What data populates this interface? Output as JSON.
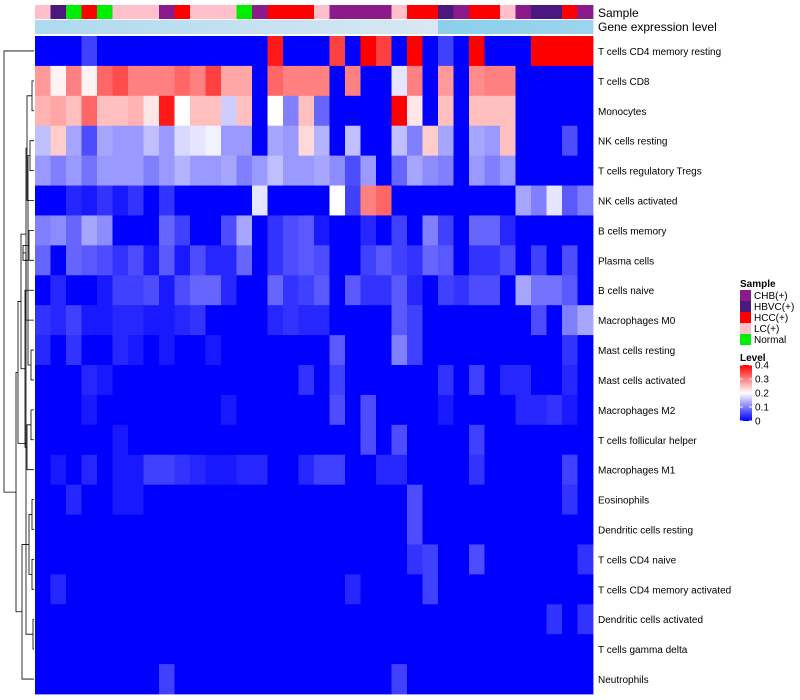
{
  "chart_data": {
    "type": "heatmap",
    "title": "",
    "annotation_tracks": [
      "Sample",
      "Gene expression level"
    ],
    "sample_legend": {
      "title": "Sample",
      "items": [
        {
          "label": "CHB(+)",
          "color": "#8b1a8b"
        },
        {
          "label": "HBVC(+)",
          "color": "#4b1880"
        },
        {
          "label": "HCC(+)",
          "color": "#ff0000"
        },
        {
          "label": "LC(+)",
          "color": "#ffc0cb"
        },
        {
          "label": "Normal",
          "color": "#00ee00"
        }
      ]
    },
    "level_legend": {
      "title": "Level",
      "ticks": [
        "0.4",
        "0.3",
        "0.2",
        "0.1",
        "0"
      ],
      "min": 0,
      "max": 0.4
    },
    "colors": {
      "low": "#0000ff",
      "mid": "#ffffff",
      "high": "#ff0000",
      "expression_low": "#87ceeb",
      "expression_high": "#dde8f3"
    },
    "sample_groups": [
      "LC(+)",
      "HBVC(+)",
      "Normal",
      "HCC(+)",
      "Normal",
      "LC(+)",
      "LC(+)",
      "LC(+)",
      "CHB(+)",
      "HCC(+)",
      "LC(+)",
      "LC(+)",
      "LC(+)",
      "Normal",
      "CHB(+)",
      "HCC(+)",
      "HCC(+)",
      "HCC(+)",
      "LC(+)",
      "CHB(+)",
      "CHB(+)",
      "CHB(+)",
      "CHB(+)",
      "LC(+)",
      "HCC(+)",
      "HCC(+)",
      "HBVC(+)",
      "CHB(+)",
      "HCC(+)",
      "HCC(+)",
      "LC(+)",
      "CHB(+)",
      "HBVC(+)",
      "HBVC(+)",
      "HCC(+)",
      "CHB(+)"
    ],
    "expression_level": [
      0.45,
      0.47,
      0.49,
      0.51,
      0.53,
      0.55,
      0.57,
      0.59,
      0.61,
      0.63,
      0.65,
      0.67,
      0.69,
      0.71,
      0.73,
      0.75,
      0.77,
      0.79,
      0.81,
      0.83,
      0.85,
      0.87,
      0.89,
      0.91,
      0.93,
      0.95,
      0.05,
      0.07,
      0.09,
      0.11,
      0.13,
      0.15,
      0.17,
      0.19,
      0.21,
      0.23
    ],
    "rows": [
      "T cells CD4 memory resting",
      "T cells CD8",
      "Monocytes",
      "NK cells resting",
      "T cells regulatory  Tregs",
      "NK cells activated",
      "B cells memory",
      "Plasma cells",
      "B cells naive",
      "Macrophages M0",
      "Mast cells resting",
      "Mast cells activated",
      "Macrophages M2",
      "T cells follicular helper",
      "Macrophages M1",
      "Eosinophils",
      "Dendritic cells resting",
      "T cells CD4 naive",
      "T cells CD4 memory activated",
      "Dendritic cells activated",
      "T cells gamma delta",
      "Neutrophils"
    ],
    "values": [
      [
        0.0,
        0.0,
        0.0,
        0.05,
        0.0,
        0.0,
        0.0,
        0.0,
        0.0,
        0.0,
        0.0,
        0.0,
        0.0,
        0.0,
        0.0,
        0.38,
        0.0,
        0.0,
        0.0,
        0.35,
        0.0,
        0.4,
        0.35,
        0.0,
        0.4,
        0.0,
        0.05,
        0.0,
        0.4,
        0.0,
        0.0,
        0.0,
        0.4,
        0.4,
        0.4,
        0.4
      ],
      [
        0.28,
        0.21,
        0.3,
        0.21,
        0.32,
        0.34,
        0.3,
        0.3,
        0.3,
        0.32,
        0.3,
        0.35,
        0.27,
        0.27,
        0.0,
        0.32,
        0.3,
        0.3,
        0.3,
        0.0,
        0.3,
        0.0,
        0.0,
        0.18,
        0.3,
        0.0,
        0.28,
        0.0,
        0.29,
        0.3,
        0.3,
        0.0,
        0.0,
        0.0,
        0.0,
        0.0
      ],
      [
        0.26,
        0.27,
        0.25,
        0.32,
        0.25,
        0.25,
        0.26,
        0.22,
        0.38,
        0.2,
        0.25,
        0.25,
        0.16,
        0.25,
        0.0,
        0.2,
        0.1,
        0.25,
        0.08,
        0.0,
        0.0,
        0.0,
        0.0,
        0.4,
        0.22,
        0.0,
        0.25,
        0.0,
        0.25,
        0.25,
        0.25,
        0.0,
        0.0,
        0.0,
        0.0,
        0.0
      ],
      [
        0.15,
        0.24,
        0.13,
        0.06,
        0.13,
        0.12,
        0.12,
        0.15,
        0.12,
        0.17,
        0.18,
        0.19,
        0.12,
        0.12,
        0.0,
        0.13,
        0.12,
        0.23,
        0.14,
        0.0,
        0.15,
        0.0,
        0.0,
        0.15,
        0.1,
        0.24,
        0.13,
        0.0,
        0.13,
        0.12,
        0.25,
        0.0,
        0.0,
        0.0,
        0.06,
        0.0
      ],
      [
        0.12,
        0.1,
        0.12,
        0.09,
        0.12,
        0.12,
        0.12,
        0.1,
        0.12,
        0.14,
        0.12,
        0.12,
        0.13,
        0.1,
        0.12,
        0.15,
        0.12,
        0.12,
        0.13,
        0.11,
        0.06,
        0.12,
        0.0,
        0.08,
        0.13,
        0.11,
        0.1,
        0.0,
        0.12,
        0.1,
        0.12,
        0.0,
        0.0,
        0.0,
        0.0,
        0.0
      ],
      [
        0.0,
        0.0,
        0.03,
        0.02,
        0.04,
        0.02,
        0.04,
        0.0,
        0.04,
        0.0,
        0.0,
        0.0,
        0.0,
        0.0,
        0.18,
        0.0,
        0.0,
        0.0,
        0.0,
        0.2,
        0.05,
        0.3,
        0.32,
        0.0,
        0.0,
        0.0,
        0.0,
        0.0,
        0.0,
        0.0,
        0.0,
        0.13,
        0.1,
        0.18,
        0.07,
        0.1
      ],
      [
        0.1,
        0.11,
        0.08,
        0.13,
        0.11,
        0.0,
        0.0,
        0.0,
        0.08,
        0.05,
        0.0,
        0.0,
        0.06,
        0.13,
        0.0,
        0.04,
        0.06,
        0.07,
        0.02,
        0.0,
        0.0,
        0.03,
        0.0,
        0.05,
        0.0,
        0.1,
        0.05,
        0.0,
        0.08,
        0.08,
        0.03,
        0.0,
        0.0,
        0.0,
        0.0,
        0.0
      ],
      [
        0.08,
        0.0,
        0.08,
        0.07,
        0.06,
        0.04,
        0.06,
        0.02,
        0.07,
        0.02,
        0.06,
        0.03,
        0.03,
        0.08,
        0.0,
        0.04,
        0.06,
        0.07,
        0.06,
        0.0,
        0.0,
        0.05,
        0.07,
        0.05,
        0.04,
        0.08,
        0.07,
        0.0,
        0.04,
        0.04,
        0.06,
        0.0,
        0.05,
        0.0,
        0.06,
        0.0
      ],
      [
        0.0,
        0.03,
        0.0,
        0.0,
        0.02,
        0.05,
        0.05,
        0.06,
        0.02,
        0.06,
        0.08,
        0.08,
        0.03,
        0.0,
        0.0,
        0.08,
        0.04,
        0.05,
        0.07,
        0.0,
        0.07,
        0.04,
        0.04,
        0.07,
        0.03,
        0.0,
        0.05,
        0.04,
        0.06,
        0.06,
        0.0,
        0.13,
        0.09,
        0.09,
        0.07,
        0.0
      ],
      [
        0.04,
        0.03,
        0.05,
        0.02,
        0.02,
        0.03,
        0.03,
        0.02,
        0.02,
        0.03,
        0.04,
        0.0,
        0.0,
        0.0,
        0.0,
        0.03,
        0.04,
        0.03,
        0.03,
        0.0,
        0.0,
        0.0,
        0.0,
        0.07,
        0.05,
        0.0,
        0.0,
        0.0,
        0.0,
        0.0,
        0.0,
        0.0,
        0.06,
        0.0,
        0.1,
        0.13
      ],
      [
        0.03,
        0.0,
        0.04,
        0.0,
        0.0,
        0.03,
        0.02,
        0.0,
        0.02,
        0.0,
        0.0,
        0.02,
        0.0,
        0.0,
        0.0,
        0.0,
        0.0,
        0.0,
        0.0,
        0.07,
        0.0,
        0.0,
        0.0,
        0.1,
        0.05,
        0.0,
        0.0,
        0.0,
        0.0,
        0.0,
        0.0,
        0.0,
        0.0,
        0.0,
        0.04,
        0.0
      ],
      [
        0.0,
        0.0,
        0.0,
        0.03,
        0.02,
        0.0,
        0.0,
        0.0,
        0.0,
        0.0,
        0.0,
        0.0,
        0.0,
        0.0,
        0.0,
        0.0,
        0.0,
        0.04,
        0.0,
        0.05,
        0.0,
        0.0,
        0.0,
        0.0,
        0.0,
        0.0,
        0.04,
        0.0,
        0.05,
        0.0,
        0.03,
        0.03,
        0.0,
        0.0,
        0.03,
        0.0
      ],
      [
        0.0,
        0.0,
        0.0,
        0.02,
        0.0,
        0.0,
        0.0,
        0.0,
        0.0,
        0.0,
        0.0,
        0.0,
        0.02,
        0.0,
        0.0,
        0.0,
        0.0,
        0.0,
        0.0,
        0.06,
        0.0,
        0.06,
        0.0,
        0.0,
        0.0,
        0.0,
        0.02,
        0.0,
        0.0,
        0.0,
        0.0,
        0.03,
        0.03,
        0.04,
        0.02,
        0.0
      ],
      [
        0.0,
        0.0,
        0.0,
        0.0,
        0.0,
        0.02,
        0.0,
        0.0,
        0.0,
        0.0,
        0.0,
        0.0,
        0.0,
        0.0,
        0.0,
        0.0,
        0.0,
        0.0,
        0.0,
        0.0,
        0.0,
        0.06,
        0.0,
        0.06,
        0.0,
        0.0,
        0.0,
        0.0,
        0.05,
        0.0,
        0.0,
        0.0,
        0.0,
        0.0,
        0.0,
        0.0
      ],
      [
        0.0,
        0.02,
        0.0,
        0.03,
        0.0,
        0.02,
        0.02,
        0.05,
        0.05,
        0.04,
        0.03,
        0.02,
        0.02,
        0.03,
        0.03,
        0.0,
        0.0,
        0.03,
        0.05,
        0.05,
        0.0,
        0.0,
        0.03,
        0.03,
        0.0,
        0.0,
        0.0,
        0.0,
        0.04,
        0.0,
        0.0,
        0.0,
        0.0,
        0.0,
        0.05,
        0.0
      ],
      [
        0.0,
        0.0,
        0.03,
        0.0,
        0.0,
        0.02,
        0.02,
        0.0,
        0.0,
        0.0,
        0.0,
        0.0,
        0.0,
        0.0,
        0.0,
        0.0,
        0.0,
        0.0,
        0.0,
        0.0,
        0.0,
        0.0,
        0.0,
        0.0,
        0.06,
        0.0,
        0.0,
        0.0,
        0.0,
        0.0,
        0.0,
        0.0,
        0.0,
        0.0,
        0.04,
        0.0
      ],
      [
        0.0,
        0.0,
        0.0,
        0.0,
        0.0,
        0.0,
        0.0,
        0.0,
        0.0,
        0.0,
        0.0,
        0.0,
        0.0,
        0.0,
        0.0,
        0.0,
        0.0,
        0.0,
        0.0,
        0.0,
        0.0,
        0.0,
        0.0,
        0.0,
        0.06,
        0.0,
        0.0,
        0.0,
        0.0,
        0.0,
        0.0,
        0.0,
        0.0,
        0.0,
        0.0,
        0.0
      ],
      [
        0.0,
        0.0,
        0.0,
        0.0,
        0.0,
        0.0,
        0.0,
        0.0,
        0.0,
        0.0,
        0.0,
        0.0,
        0.0,
        0.0,
        0.0,
        0.0,
        0.0,
        0.0,
        0.0,
        0.0,
        0.0,
        0.0,
        0.0,
        0.0,
        0.04,
        0.05,
        0.0,
        0.0,
        0.06,
        0.0,
        0.0,
        0.0,
        0.0,
        0.0,
        0.0,
        0.04
      ],
      [
        0.0,
        0.03,
        0.0,
        0.0,
        0.0,
        0.0,
        0.0,
        0.0,
        0.0,
        0.0,
        0.0,
        0.0,
        0.0,
        0.0,
        0.0,
        0.0,
        0.0,
        0.0,
        0.0,
        0.0,
        0.03,
        0.0,
        0.0,
        0.0,
        0.0,
        0.05,
        0.0,
        0.0,
        0.0,
        0.0,
        0.0,
        0.0,
        0.0,
        0.0,
        0.0,
        0.0
      ],
      [
        0.0,
        0.0,
        0.0,
        0.0,
        0.0,
        0.0,
        0.0,
        0.0,
        0.0,
        0.0,
        0.0,
        0.0,
        0.0,
        0.0,
        0.0,
        0.0,
        0.0,
        0.0,
        0.0,
        0.0,
        0.0,
        0.0,
        0.0,
        0.0,
        0.0,
        0.0,
        0.0,
        0.0,
        0.0,
        0.0,
        0.0,
        0.0,
        0.0,
        0.04,
        0.0,
        0.04
      ],
      [
        0.0,
        0.0,
        0.0,
        0.0,
        0.0,
        0.0,
        0.0,
        0.0,
        0.0,
        0.0,
        0.0,
        0.0,
        0.0,
        0.0,
        0.0,
        0.0,
        0.0,
        0.0,
        0.0,
        0.0,
        0.0,
        0.0,
        0.0,
        0.0,
        0.0,
        0.0,
        0.0,
        0.0,
        0.0,
        0.0,
        0.0,
        0.0,
        0.0,
        0.0,
        0.0,
        0.0
      ],
      [
        0.0,
        0.0,
        0.0,
        0.0,
        0.0,
        0.0,
        0.0,
        0.0,
        0.05,
        0.0,
        0.0,
        0.0,
        0.0,
        0.0,
        0.0,
        0.0,
        0.0,
        0.0,
        0.0,
        0.0,
        0.0,
        0.0,
        0.0,
        0.05,
        0.0,
        0.0,
        0.0,
        0.0,
        0.0,
        0.0,
        0.0,
        0.0,
        0.0,
        0.0,
        0.0,
        0.0
      ]
    ]
  }
}
